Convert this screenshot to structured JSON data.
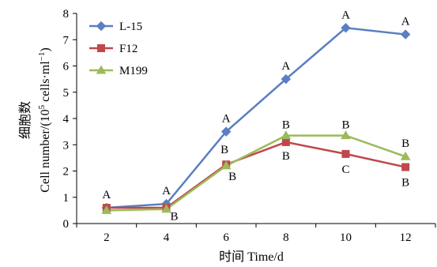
{
  "chart_data": {
    "type": "line",
    "x": [
      2,
      4,
      6,
      8,
      10,
      12
    ],
    "xlabel": "时间 Time/d",
    "ylabel_cn": "细胞数",
    "ylabel_en": "Cell number/(10",
    "ylabel_sup": "5",
    "ylabel_tail": " cells·ml",
    "ylabel_sup2": "−1",
    "ylabel_end": ")",
    "xlim": [
      1,
      13
    ],
    "ylim": [
      0,
      8
    ],
    "xticks": [
      2,
      4,
      6,
      8,
      10,
      12
    ],
    "yticks": [
      0,
      1,
      2,
      3,
      4,
      5,
      6,
      7,
      8
    ],
    "grid": false,
    "legend_position": "top-left",
    "series": [
      {
        "name": "L-15",
        "color": "#5a7fc2",
        "marker": "diamond",
        "values": [
          0.6,
          0.75,
          3.5,
          5.5,
          7.45,
          7.2
        ],
        "labels": [
          "A",
          "A",
          "A",
          "A",
          "A",
          "A"
        ]
      },
      {
        "name": "F12",
        "color": "#c0474a",
        "marker": "square",
        "values": [
          0.6,
          0.6,
          2.25,
          3.1,
          2.65,
          2.15
        ],
        "labels": [
          "",
          "",
          "",
          "B",
          "C",
          "B"
        ]
      },
      {
        "name": "M199",
        "color": "#9bbb59",
        "marker": "triangle",
        "values": [
          0.5,
          0.55,
          2.2,
          3.35,
          3.35,
          2.55
        ],
        "labels": [
          "",
          "B",
          "B",
          "B",
          "B",
          "B"
        ]
      }
    ],
    "annotations": [
      {
        "x": 6,
        "text": "B",
        "where": "above-m199"
      },
      {
        "x": 6,
        "text": "B",
        "where": "below-m199"
      }
    ]
  }
}
